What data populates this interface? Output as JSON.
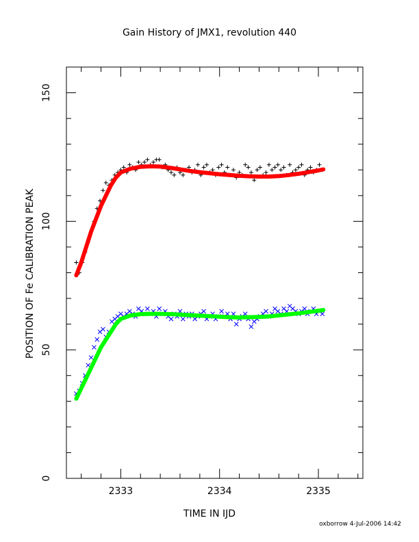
{
  "chart_data": {
    "type": "scatter",
    "title": "Gain History of JMX1, revolution 440",
    "xlabel": "TIME IN IJD",
    "ylabel": "POSITION OF Fe CALIBRATION PEAK",
    "xlim": [
      2332.45,
      2335.45
    ],
    "ylim": [
      0,
      160
    ],
    "x_ticks": [
      "2333",
      "2334",
      "2335"
    ],
    "x_tick_values": [
      2333,
      2334,
      2335
    ],
    "y_ticks": [
      "0",
      "50",
      "100",
      "150"
    ],
    "y_tick_values": [
      0,
      50,
      100,
      150
    ],
    "grid": false,
    "footer": "oxborrow  4-Jul-2006 14:42",
    "colors": {
      "upper_points": "#000000",
      "upper_fit": "#ff0000",
      "lower_points": "#0000ff",
      "lower_fit": "#00ff00"
    },
    "series": [
      {
        "marker": "plus",
        "x": [
          2332.55,
          2332.58,
          2332.61,
          2332.64,
          2332.67,
          2332.7,
          2332.73,
          2332.76,
          2332.79,
          2332.82,
          2332.85,
          2332.88,
          2332.91,
          2332.94,
          2332.97,
          2333.0,
          2333.03,
          2333.06,
          2333.09,
          2333.12,
          2333.15,
          2333.18,
          2333.21,
          2333.24,
          2333.27,
          2333.3,
          2333.33,
          2333.36,
          2333.39,
          2333.42,
          2333.45,
          2333.48,
          2333.51,
          2333.54,
          2333.57,
          2333.6,
          2333.63,
          2333.66,
          2333.69,
          2333.72,
          2333.75,
          2333.78,
          2333.81,
          2333.84,
          2333.87,
          2333.9,
          2333.93,
          2333.96,
          2333.99,
          2334.02,
          2334.05,
          2334.08,
          2334.11,
          2334.14,
          2334.17,
          2334.2,
          2334.23,
          2334.26,
          2334.29,
          2334.32,
          2334.35,
          2334.38,
          2334.41,
          2334.44,
          2334.47,
          2334.5,
          2334.53,
          2334.56,
          2334.59,
          2334.62,
          2334.65,
          2334.68,
          2334.71,
          2334.74,
          2334.77,
          2334.8,
          2334.83,
          2334.86,
          2334.89,
          2334.92,
          2334.95,
          2334.98,
          2335.01,
          2335.04
        ],
        "y": [
          84,
          80,
          84,
          88,
          92,
          96,
          100,
          105,
          108,
          112,
          115,
          114,
          116,
          118,
          119,
          120,
          121,
          119,
          122,
          121,
          120,
          123,
          122,
          123,
          124,
          122,
          123,
          124,
          124,
          121,
          122,
          120,
          119,
          118,
          121,
          119,
          118,
          120,
          121,
          119,
          120,
          122,
          118,
          121,
          122,
          119,
          120,
          118,
          121,
          122,
          119,
          121,
          118,
          120,
          117,
          119,
          118,
          122,
          121,
          119,
          116,
          120,
          121,
          118,
          119,
          122,
          120,
          121,
          122,
          120,
          121,
          118,
          122,
          119,
          120,
          121,
          122,
          118,
          120,
          121,
          119,
          120,
          122,
          120
        ]
      },
      {
        "marker": "line",
        "x": [
          2332.55,
          2332.6,
          2332.65,
          2332.7,
          2332.75,
          2332.8,
          2332.85,
          2332.9,
          2332.95,
          2333.0,
          2333.1,
          2333.2,
          2333.3,
          2333.4,
          2333.5,
          2333.6,
          2333.7,
          2333.8,
          2333.9,
          2334.0,
          2334.1,
          2334.2,
          2334.3,
          2334.4,
          2334.5,
          2334.6,
          2334.7,
          2334.8,
          2334.9,
          2335.0,
          2335.05
        ],
        "y": [
          79,
          84,
          90,
          96,
          101,
          106,
          110,
          114,
          117,
          119,
          120.5,
          121.2,
          121.4,
          121.3,
          120.8,
          120.2,
          119.6,
          119.1,
          118.7,
          118.3,
          118.0,
          117.7,
          117.5,
          117.4,
          117.4,
          117.6,
          118.0,
          118.5,
          119.1,
          119.8,
          120.2
        ]
      },
      {
        "marker": "x",
        "x": [
          2332.55,
          2332.58,
          2332.61,
          2332.64,
          2332.67,
          2332.7,
          2332.73,
          2332.76,
          2332.79,
          2332.82,
          2332.85,
          2332.88,
          2332.91,
          2332.94,
          2332.97,
          2333.0,
          2333.03,
          2333.06,
          2333.09,
          2333.12,
          2333.15,
          2333.18,
          2333.21,
          2333.24,
          2333.27,
          2333.3,
          2333.33,
          2333.36,
          2333.39,
          2333.42,
          2333.45,
          2333.48,
          2333.51,
          2333.54,
          2333.57,
          2333.6,
          2333.63,
          2333.66,
          2333.69,
          2333.72,
          2333.75,
          2333.78,
          2333.81,
          2333.84,
          2333.87,
          2333.9,
          2333.93,
          2333.96,
          2333.99,
          2334.02,
          2334.05,
          2334.08,
          2334.11,
          2334.14,
          2334.17,
          2334.2,
          2334.23,
          2334.26,
          2334.29,
          2334.32,
          2334.35,
          2334.38,
          2334.41,
          2334.44,
          2334.47,
          2334.5,
          2334.53,
          2334.56,
          2334.59,
          2334.62,
          2334.65,
          2334.68,
          2334.71,
          2334.74,
          2334.77,
          2334.8,
          2334.83,
          2334.86,
          2334.89,
          2334.92,
          2334.95,
          2334.98,
          2335.01,
          2335.04
        ],
        "y": [
          33,
          34,
          37,
          40,
          44,
          47,
          51,
          54,
          57,
          58,
          55,
          57,
          61,
          62,
          63,
          64,
          63,
          64,
          65,
          64,
          63,
          66,
          65,
          64,
          66,
          64,
          65,
          63,
          66,
          64,
          65,
          63,
          62,
          64,
          63,
          65,
          62,
          64,
          63,
          64,
          62,
          63,
          64,
          65,
          62,
          63,
          64,
          62,
          63,
          65,
          63,
          64,
          62,
          64,
          60,
          62,
          63,
          64,
          62,
          59,
          61,
          62,
          63,
          64,
          65,
          63,
          64,
          66,
          65,
          64,
          66,
          65,
          67,
          66,
          65,
          64,
          65,
          66,
          64,
          65,
          66,
          64,
          65,
          64
        ]
      },
      {
        "marker": "line",
        "x": [
          2332.55,
          2332.6,
          2332.65,
          2332.7,
          2332.75,
          2332.8,
          2332.85,
          2332.9,
          2332.95,
          2333.0,
          2333.1,
          2333.2,
          2333.3,
          2333.4,
          2333.5,
          2333.6,
          2333.7,
          2333.8,
          2333.9,
          2334.0,
          2334.1,
          2334.2,
          2334.3,
          2334.4,
          2334.5,
          2334.6,
          2334.7,
          2334.8,
          2334.9,
          2335.0,
          2335.05
        ],
        "y": [
          31,
          35,
          39,
          43,
          47,
          51,
          54,
          57,
          60,
          62,
          63.4,
          63.9,
          64.0,
          64.0,
          63.9,
          63.7,
          63.5,
          63.3,
          63.1,
          62.9,
          62.7,
          62.6,
          62.7,
          62.8,
          63.0,
          63.4,
          63.8,
          64.2,
          64.7,
          65.2,
          65.5
        ]
      }
    ]
  }
}
